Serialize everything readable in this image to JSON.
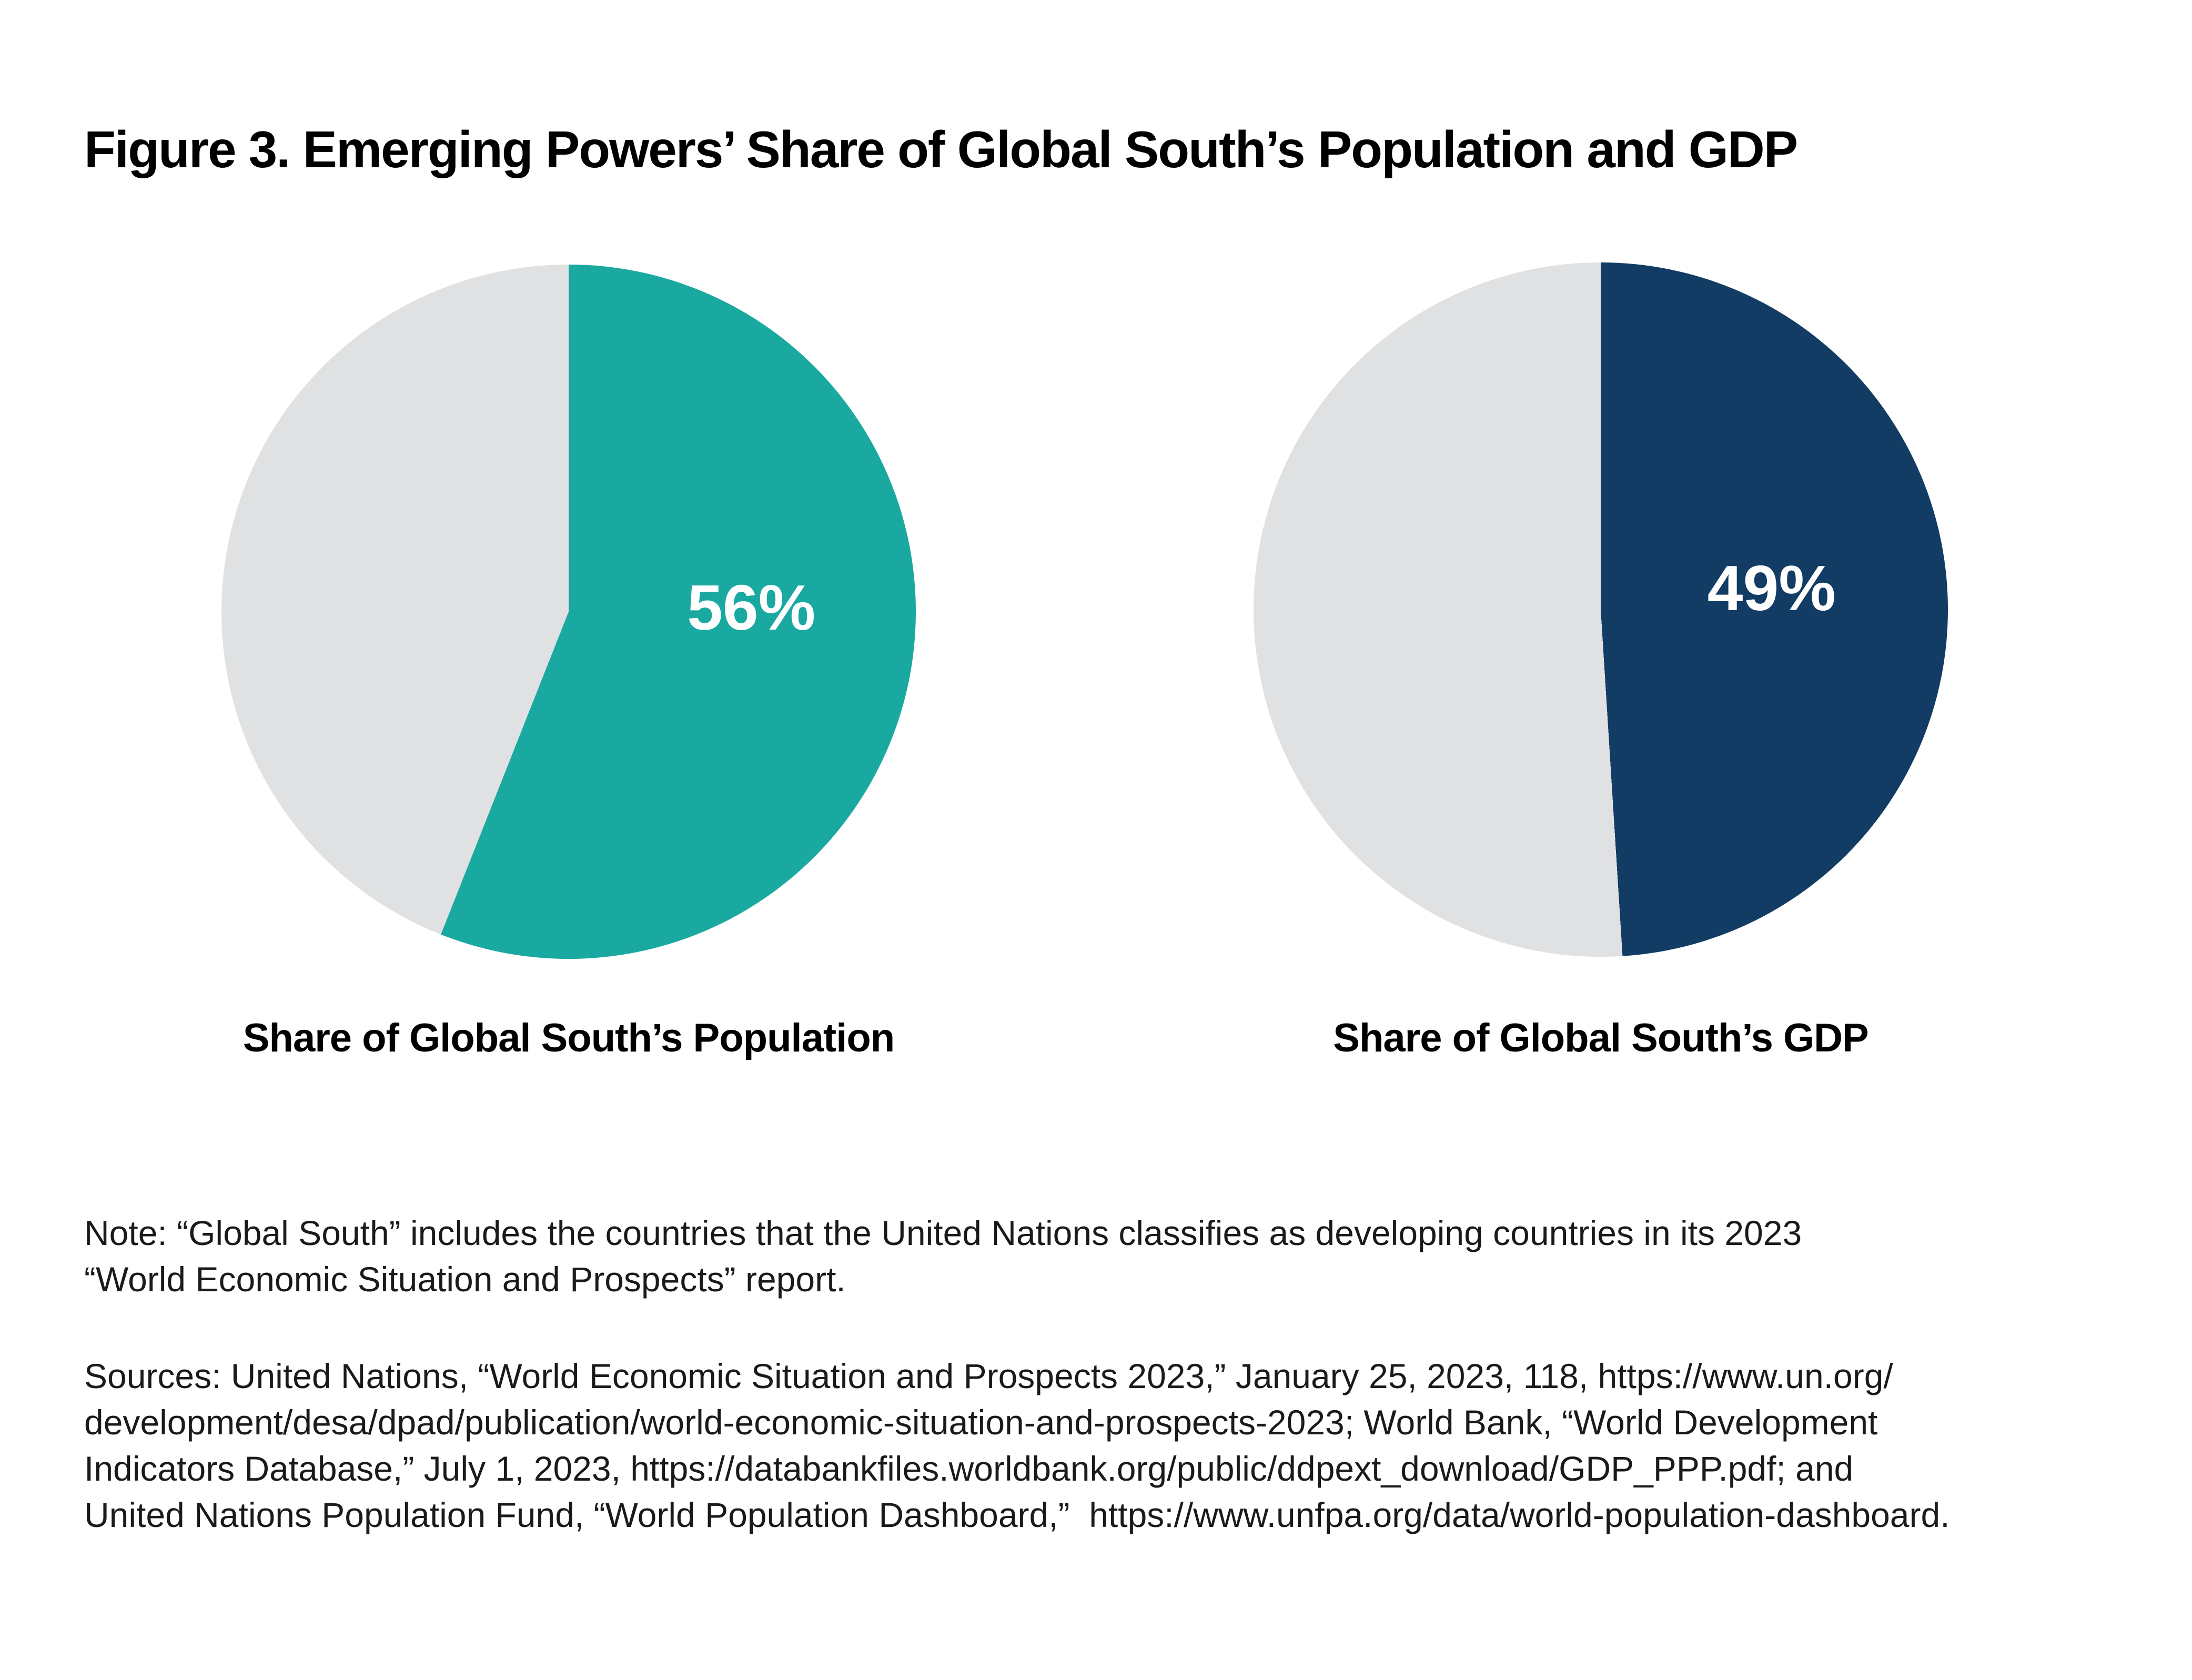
{
  "figure": {
    "title": "Figure 3. Emerging Powers’ Share of Global South’s Population and GDP"
  },
  "chart_data": [
    {
      "type": "pie",
      "title": "Share of Global South’s Population",
      "data_label": "56%",
      "data_label_color": "#FFFFFF",
      "start_angle_deg": 0,
      "direction": "clockwise",
      "slices": [
        {
          "value": 56,
          "color": "#1AA9A0"
        },
        {
          "value": 44,
          "color": "#E0E1E3"
        }
      ]
    },
    {
      "type": "pie",
      "title": "Share of Global South’s GDP",
      "data_label": "49%",
      "data_label_color": "#FFFFFF",
      "start_angle_deg": 0,
      "direction": "clockwise",
      "slices": [
        {
          "value": 49,
          "color": "#123C63"
        },
        {
          "value": 51,
          "color": "#E0E1E3"
        }
      ]
    }
  ],
  "note": {
    "lines": [
      "Note: “Global South” includes the countries that the United Nations classifies as developing countries in its 2023",
      "“World Economic Situation and Prospects” report."
    ]
  },
  "sources": {
    "lines": [
      "Sources: United Nations, “World Economic Situation and Prospects 2023,” January 25, 2023, 118, https://www.un.org/",
      "development/desa/dpad/publication/world-economic-situation-and-prospects-2023; World Bank, “World Development",
      "Indicators Database,” July 1, 2023, https://databankfiles.worldbank.org/public/ddpext_download/GDP_PPP.pdf; and",
      "United Nations Population Fund, “World Population Dashboard,”  https://www.unfpa.org/data/world-population-dashboard."
    ]
  },
  "colors": {
    "teal": "#1AA9A0",
    "navy": "#123C63",
    "gray": "#E0E1E3",
    "background": "#FFFFFF",
    "title_text": "#000000",
    "body_text": "#1A1A1A",
    "data_label_text": "#FFFFFF"
  }
}
